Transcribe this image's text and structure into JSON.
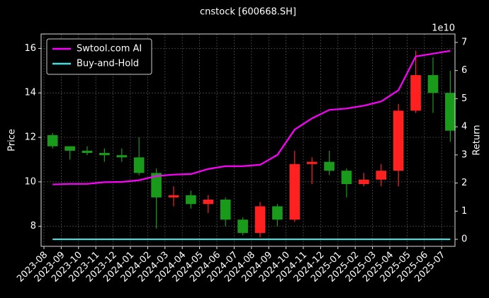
{
  "chart_data": {
    "type": "candlestick",
    "title": "cnstock [600668.SH]",
    "ylabel": "Price",
    "y2label": "Return",
    "y2_multiplier": "1e10",
    "categories": [
      "2023-08",
      "2023-09",
      "2023-10",
      "2023-11",
      "2023-12",
      "2024-01",
      "2024-02",
      "2024-03",
      "2024-04",
      "2024-05",
      "2024-06",
      "2024-07",
      "2024-08",
      "2024-09",
      "2024-10",
      "2024-11",
      "2024-12",
      "2025-01",
      "2025-02",
      "2025-03",
      "2025-04",
      "2025-05",
      "2025-06",
      "2025-07"
    ],
    "open": [
      12.1,
      11.6,
      11.4,
      11.3,
      11.2,
      11.1,
      10.4,
      9.3,
      9.4,
      9.0,
      9.2,
      8.3,
      7.7,
      8.9,
      8.3,
      10.8,
      10.9,
      10.5,
      9.9,
      10.1,
      10.5,
      13.2,
      14.8,
      14.0
    ],
    "high": [
      12.2,
      11.6,
      11.6,
      11.5,
      11.5,
      12.0,
      10.6,
      9.8,
      9.6,
      9.4,
      9.3,
      8.4,
      9.1,
      9.0,
      11.4,
      11.1,
      11.4,
      10.6,
      10.4,
      10.8,
      13.5,
      15.9,
      15.6,
      15.0
    ],
    "low": [
      11.5,
      11.0,
      11.2,
      10.9,
      10.9,
      10.3,
      7.9,
      8.9,
      8.8,
      8.6,
      8.0,
      7.6,
      7.5,
      8.0,
      8.2,
      9.9,
      10.3,
      9.3,
      9.8,
      9.8,
      9.8,
      13.1,
      13.1,
      11.8
    ],
    "close": [
      11.6,
      11.4,
      11.3,
      11.2,
      11.1,
      10.4,
      9.3,
      9.4,
      9.0,
      9.2,
      8.3,
      7.7,
      8.9,
      8.3,
      10.8,
      10.9,
      10.5,
      9.9,
      10.1,
      10.5,
      13.2,
      14.8,
      14.0,
      12.3
    ],
    "up_color": "#ff2020",
    "down_color": "#1a9a1a",
    "series": [
      {
        "name": "Swtool.com AI",
        "color": "#ff00ff",
        "axis": "y2",
        "values": [
          1.95,
          1.97,
          1.97,
          2.03,
          2.04,
          2.1,
          2.25,
          2.3,
          2.32,
          2.5,
          2.6,
          2.6,
          2.65,
          3.0,
          3.9,
          4.3,
          4.6,
          4.65,
          4.75,
          4.9,
          5.3,
          6.5,
          6.6,
          6.7
        ]
      },
      {
        "name": "Buy-and-Hold",
        "color": "#40e0e0",
        "axis": "y2",
        "values": [
          0,
          0,
          0,
          0,
          0,
          0,
          0,
          0,
          0,
          0,
          0,
          0,
          0,
          0,
          0,
          0,
          0,
          0,
          0,
          0,
          0,
          0,
          0,
          0
        ]
      }
    ],
    "ylim": [
      7.1,
      16.65
    ],
    "yticks": [
      8,
      10,
      12,
      14,
      16
    ],
    "y2lim": [
      -0.25,
      7.3
    ],
    "y2ticks": [
      0,
      1,
      2,
      3,
      4,
      5,
      6,
      7
    ],
    "grid": true,
    "legend": "upper left"
  }
}
